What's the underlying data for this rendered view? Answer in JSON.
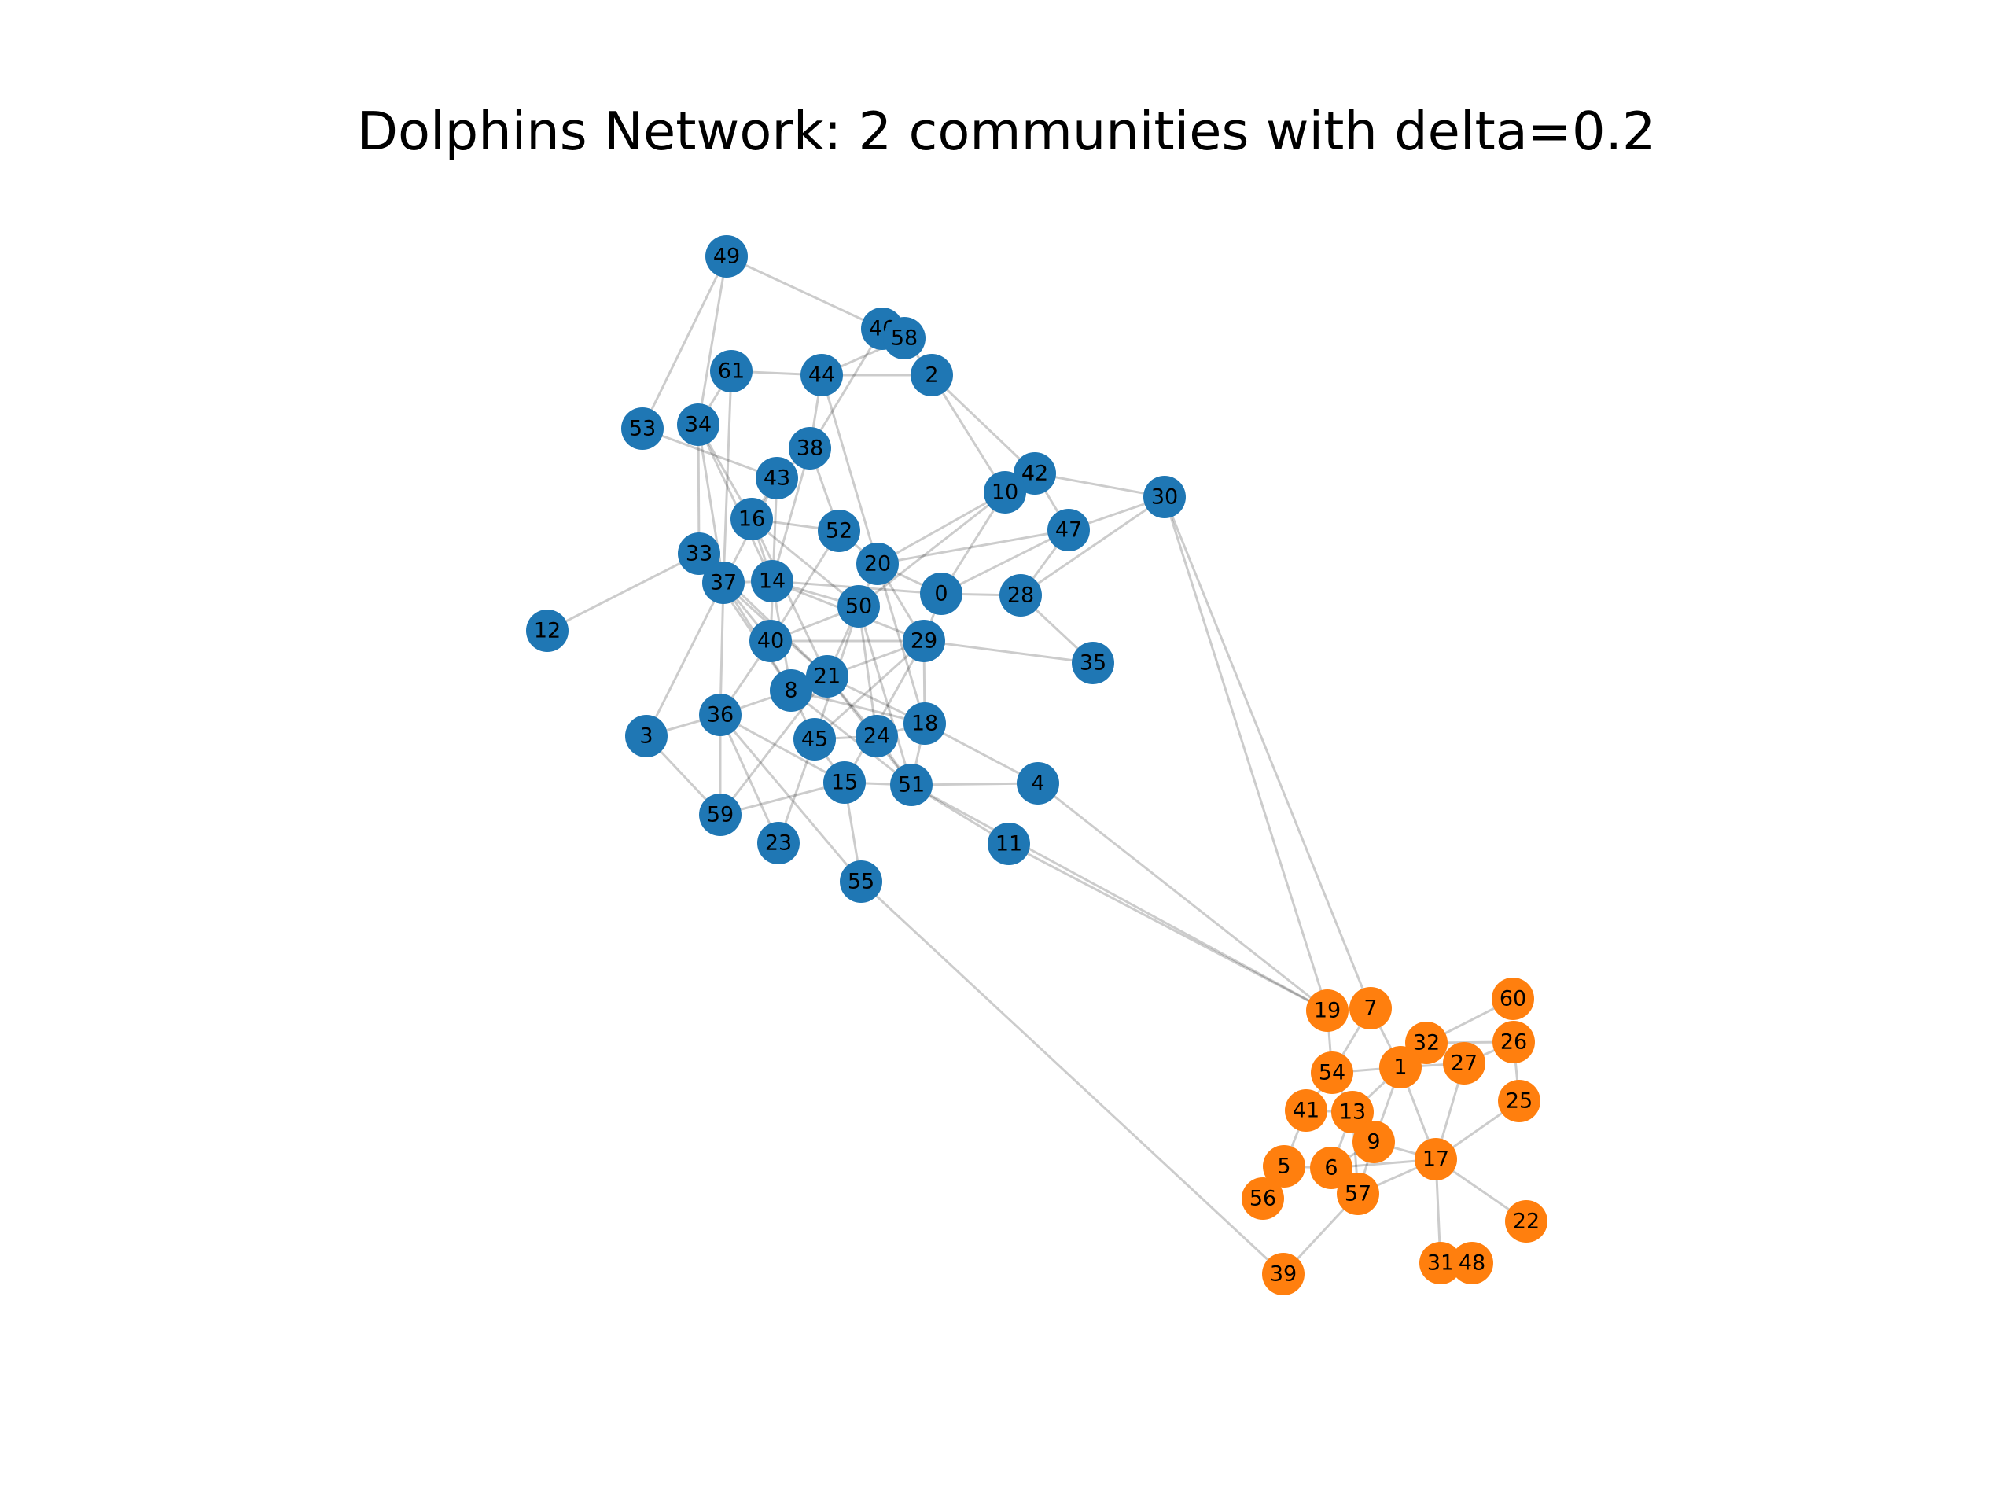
{
  "title": "Dolphins Network: 2 communities with delta=0.2",
  "colors": {
    "community_0": "#1f77b4",
    "community_1": "#ff7f0e",
    "edge": "#000000"
  },
  "communities": [
    [
      "0",
      "2",
      "3",
      "4",
      "8",
      "10",
      "11",
      "12",
      "14",
      "15",
      "16",
      "18",
      "20",
      "21",
      "23",
      "24",
      "28",
      "29",
      "30",
      "33",
      "34",
      "35",
      "36",
      "37",
      "38",
      "40",
      "42",
      "43",
      "44",
      "45",
      "46",
      "47",
      "49",
      "50",
      "51",
      "52",
      "53",
      "55",
      "58",
      "59",
      "61"
    ],
    [
      "1",
      "5",
      "6",
      "7",
      "9",
      "13",
      "17",
      "19",
      "22",
      "25",
      "26",
      "27",
      "31",
      "32",
      "39",
      "41",
      "48",
      "54",
      "56",
      "57",
      "60"
    ]
  ],
  "nodes": [
    "49",
    "46",
    "58",
    "61",
    "44",
    "2",
    "53",
    "34",
    "38",
    "43",
    "42",
    "10",
    "30",
    "16",
    "52",
    "47",
    "33",
    "20",
    "37",
    "14",
    "0",
    "28",
    "50",
    "12",
    "40",
    "29",
    "35",
    "21",
    "8",
    "36",
    "18",
    "3",
    "24",
    "45",
    "4",
    "15",
    "51",
    "59",
    "23",
    "11",
    "55",
    "60",
    "19",
    "7",
    "32",
    "26",
    "54",
    "1",
    "27",
    "41",
    "13",
    "25",
    "9",
    "17",
    "5",
    "6",
    "56",
    "57",
    "22",
    "31",
    "48",
    "39"
  ],
  "edges": [
    [
      "49",
      "46"
    ],
    [
      "49",
      "34"
    ],
    [
      "49",
      "53"
    ],
    [
      "46",
      "58"
    ],
    [
      "46",
      "38"
    ],
    [
      "58",
      "2"
    ],
    [
      "58",
      "44"
    ],
    [
      "61",
      "44"
    ],
    [
      "61",
      "34"
    ],
    [
      "61",
      "37"
    ],
    [
      "44",
      "2"
    ],
    [
      "44",
      "38"
    ],
    [
      "44",
      "20"
    ],
    [
      "2",
      "10"
    ],
    [
      "2",
      "42"
    ],
    [
      "34",
      "33"
    ],
    [
      "34",
      "37"
    ],
    [
      "34",
      "14"
    ],
    [
      "34",
      "16"
    ],
    [
      "53",
      "43"
    ],
    [
      "38",
      "43"
    ],
    [
      "38",
      "14"
    ],
    [
      "38",
      "52"
    ],
    [
      "43",
      "16"
    ],
    [
      "43",
      "37"
    ],
    [
      "43",
      "40"
    ],
    [
      "16",
      "14"
    ],
    [
      "16",
      "52"
    ],
    [
      "16",
      "50"
    ],
    [
      "16",
      "21"
    ],
    [
      "42",
      "10"
    ],
    [
      "42",
      "30"
    ],
    [
      "42",
      "47"
    ],
    [
      "10",
      "0"
    ],
    [
      "10",
      "50"
    ],
    [
      "10",
      "20"
    ],
    [
      "30",
      "47"
    ],
    [
      "30",
      "28"
    ],
    [
      "30",
      "19"
    ],
    [
      "30",
      "7"
    ],
    [
      "52",
      "20"
    ],
    [
      "52",
      "40"
    ],
    [
      "47",
      "20"
    ],
    [
      "47",
      "0"
    ],
    [
      "47",
      "28"
    ],
    [
      "33",
      "37"
    ],
    [
      "33",
      "12"
    ],
    [
      "33",
      "21"
    ],
    [
      "33",
      "8"
    ],
    [
      "37",
      "14"
    ],
    [
      "37",
      "40"
    ],
    [
      "37",
      "36"
    ],
    [
      "37",
      "21"
    ],
    [
      "37",
      "8"
    ],
    [
      "37",
      "3"
    ],
    [
      "14",
      "50"
    ],
    [
      "14",
      "0"
    ],
    [
      "14",
      "29"
    ],
    [
      "14",
      "8"
    ],
    [
      "20",
      "0"
    ],
    [
      "20",
      "21"
    ],
    [
      "20",
      "29"
    ],
    [
      "20",
      "18"
    ],
    [
      "0",
      "29"
    ],
    [
      "0",
      "28"
    ],
    [
      "28",
      "35"
    ],
    [
      "50",
      "40"
    ],
    [
      "50",
      "24"
    ],
    [
      "50",
      "51"
    ],
    [
      "50",
      "45"
    ],
    [
      "40",
      "29"
    ],
    [
      "40",
      "36"
    ],
    [
      "29",
      "21"
    ],
    [
      "29",
      "45"
    ],
    [
      "29",
      "18"
    ],
    [
      "29",
      "35"
    ],
    [
      "29",
      "15"
    ],
    [
      "21",
      "8"
    ],
    [
      "21",
      "24"
    ],
    [
      "21",
      "18"
    ],
    [
      "21",
      "51"
    ],
    [
      "21",
      "59"
    ],
    [
      "8",
      "45"
    ],
    [
      "8",
      "18"
    ],
    [
      "8",
      "51"
    ],
    [
      "8",
      "36"
    ],
    [
      "36",
      "59"
    ],
    [
      "36",
      "23"
    ],
    [
      "36",
      "15"
    ],
    [
      "36",
      "55"
    ],
    [
      "36",
      "3"
    ],
    [
      "3",
      "59"
    ],
    [
      "45",
      "24"
    ],
    [
      "45",
      "15"
    ],
    [
      "45",
      "23"
    ],
    [
      "24",
      "18"
    ],
    [
      "24",
      "51"
    ],
    [
      "18",
      "4"
    ],
    [
      "18",
      "51"
    ],
    [
      "15",
      "55"
    ],
    [
      "15",
      "51"
    ],
    [
      "15",
      "59"
    ],
    [
      "51",
      "4"
    ],
    [
      "51",
      "11"
    ],
    [
      "51",
      "19"
    ],
    [
      "11",
      "19"
    ],
    [
      "55",
      "39"
    ],
    [
      "4",
      "19"
    ],
    [
      "19",
      "54"
    ],
    [
      "7",
      "54"
    ],
    [
      "7",
      "1"
    ],
    [
      "54",
      "1"
    ],
    [
      "54",
      "41"
    ],
    [
      "54",
      "13"
    ],
    [
      "1",
      "32"
    ],
    [
      "1",
      "27"
    ],
    [
      "1",
      "13"
    ],
    [
      "1",
      "9"
    ],
    [
      "1",
      "17"
    ],
    [
      "32",
      "60"
    ],
    [
      "32",
      "26"
    ],
    [
      "32",
      "27"
    ],
    [
      "27",
      "26"
    ],
    [
      "27",
      "17"
    ],
    [
      "26",
      "25"
    ],
    [
      "25",
      "17"
    ],
    [
      "41",
      "13"
    ],
    [
      "41",
      "5"
    ],
    [
      "13",
      "9"
    ],
    [
      "13",
      "6"
    ],
    [
      "13",
      "57"
    ],
    [
      "9",
      "17"
    ],
    [
      "9",
      "6"
    ],
    [
      "9",
      "57"
    ],
    [
      "17",
      "57"
    ],
    [
      "17",
      "22"
    ],
    [
      "17",
      "31"
    ],
    [
      "5",
      "56"
    ],
    [
      "5",
      "6"
    ],
    [
      "6",
      "57"
    ],
    [
      "6",
      "17"
    ],
    [
      "57",
      "39"
    ],
    [
      "31",
      "48"
    ]
  ]
}
